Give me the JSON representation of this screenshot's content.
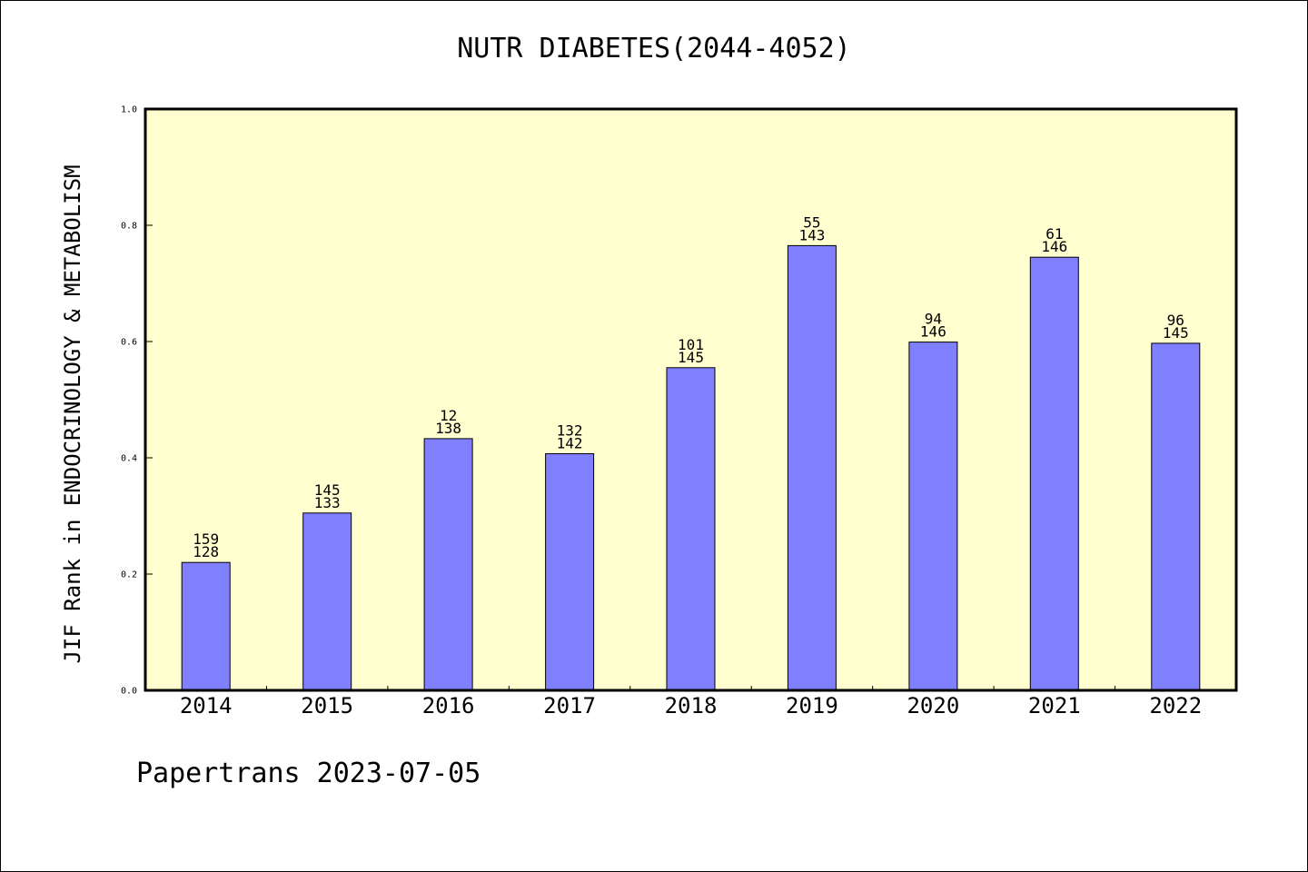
{
  "chart_data": {
    "type": "bar",
    "title": "NUTR DIABETES(2044-4052)",
    "xlabel": "",
    "ylabel": "JIF Rank in ENDOCRINOLOGY & METABOLISM",
    "ylim": [
      0,
      1.0
    ],
    "yticks": [
      "0.0",
      "0.2",
      "0.4",
      "0.6",
      "0.8",
      "1.0"
    ],
    "categories": [
      "2014",
      "2015",
      "2016",
      "2017",
      "2018",
      "2019",
      "2020",
      "2021",
      "2022"
    ],
    "values": [
      0.22,
      0.305,
      0.433,
      0.407,
      0.555,
      0.765,
      0.599,
      0.745,
      0.597
    ],
    "rank": [
      "159",
      "145",
      "12",
      "132",
      "101",
      "55",
      "94",
      "61",
      "96"
    ],
    "total": [
      "128",
      "133",
      "138",
      "142",
      "145",
      "143",
      "146",
      "146",
      "145"
    ],
    "grid": false,
    "colors": {
      "bar": "#8080ff",
      "plot_background": "#ffffd0",
      "axis": "#000000"
    }
  },
  "footer": "Papertrans 2023-07-05"
}
